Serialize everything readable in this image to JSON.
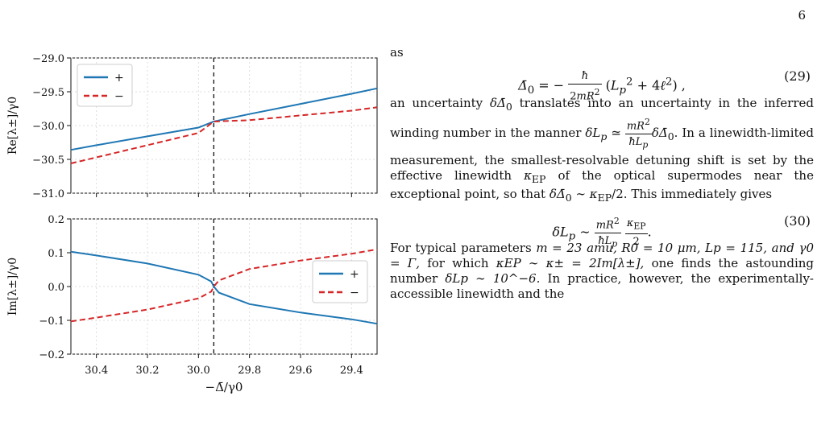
{
  "page": {
    "number": "6"
  },
  "figure": {
    "top_panel": {
      "ylabel": "Re[λ±]/γ0",
      "yticks": [
        "−29.0",
        "−29.5",
        "−30.0",
        "−30.5",
        "−31.0"
      ],
      "legend": [
        "+",
        "−"
      ]
    },
    "bottom_panel": {
      "ylabel": "Im[λ±]/γ0",
      "yticks": [
        "0.2",
        "0.1",
        "0.0",
        "−0.1",
        "−0.2"
      ],
      "legend": [
        "+",
        "−"
      ]
    },
    "xticks": [
      "30.4",
      "30.2",
      "30.0",
      "29.8",
      "29.6",
      "29.4"
    ],
    "xlabel": "−Δ̄/γ0",
    "colors": {
      "plus": "#1f77b4",
      "minus": "#d62728"
    }
  },
  "chart_data": [
    {
      "type": "line",
      "title": "",
      "xlabel": "",
      "ylabel": "Re[λ±]/γ0",
      "xlim": [
        30.5,
        29.3
      ],
      "ylim": [
        -31.0,
        -29.0
      ],
      "exceptional_point_x": 29.94,
      "series": [
        {
          "name": "+",
          "x": [
            30.5,
            30.4,
            30.2,
            30.0,
            29.94,
            29.8,
            29.6,
            29.4,
            29.3
          ],
          "y": [
            -30.36,
            -30.29,
            -30.16,
            -30.03,
            -29.94,
            -29.83,
            -29.68,
            -29.53,
            -29.45
          ]
        },
        {
          "name": "−",
          "x": [
            30.5,
            30.4,
            30.2,
            30.0,
            29.94,
            29.8,
            29.6,
            29.4,
            29.3
          ],
          "y": [
            -30.56,
            -30.47,
            -30.29,
            -30.11,
            -29.94,
            -29.92,
            -29.85,
            -29.78,
            -29.73
          ]
        }
      ]
    },
    {
      "type": "line",
      "title": "",
      "xlabel": "−Δ̄/γ0",
      "ylabel": "Im[λ±]/γ0",
      "xlim": [
        30.5,
        29.3
      ],
      "ylim": [
        -0.2,
        0.2
      ],
      "exceptional_point_x": 29.94,
      "series": [
        {
          "name": "+",
          "x": [
            30.5,
            30.4,
            30.2,
            30.0,
            29.95,
            29.94,
            29.92,
            29.8,
            29.6,
            29.4,
            29.3
          ],
          "y": [
            0.103,
            0.092,
            0.068,
            0.035,
            0.015,
            0.0,
            -0.018,
            -0.052,
            -0.077,
            -0.097,
            -0.11
          ]
        },
        {
          "name": "−",
          "x": [
            30.5,
            30.4,
            30.2,
            30.0,
            29.95,
            29.94,
            29.92,
            29.8,
            29.6,
            29.4,
            29.3
          ],
          "y": [
            -0.103,
            -0.092,
            -0.068,
            -0.035,
            -0.015,
            0.0,
            0.018,
            0.052,
            0.077,
            0.097,
            0.11
          ]
        }
      ]
    }
  ],
  "text": {
    "intro_word": "as",
    "eq29_number": "(29)",
    "para1_a": "an uncertainty",
    "para1_b": "translates into an uncertainty in the inferred winding number in the manner",
    "para1_c": ". In a linewidth-limited measurement, the smallest-resolvable detuning shift is set by the effective linewidth",
    "para1_d": "of the optical supermodes near the exceptional point, so that",
    "para1_e": ". This immediately gives",
    "eq30_number": "(30)",
    "para2_a": "For typical parameters",
    "para2_b": "m = 23 amu, R0 = 10 μm, Lp = 115, and γ0 = Γ,",
    "para2_c": "for which",
    "para2_d": "κEP ∼ κ± = 2Im[λ±],",
    "para2_e": "one finds the astounding number",
    "para2_f": "δLp ∼ 10^−6.",
    "para2_g": "In practice, however, the experimentally-accessible linewidth and the"
  }
}
